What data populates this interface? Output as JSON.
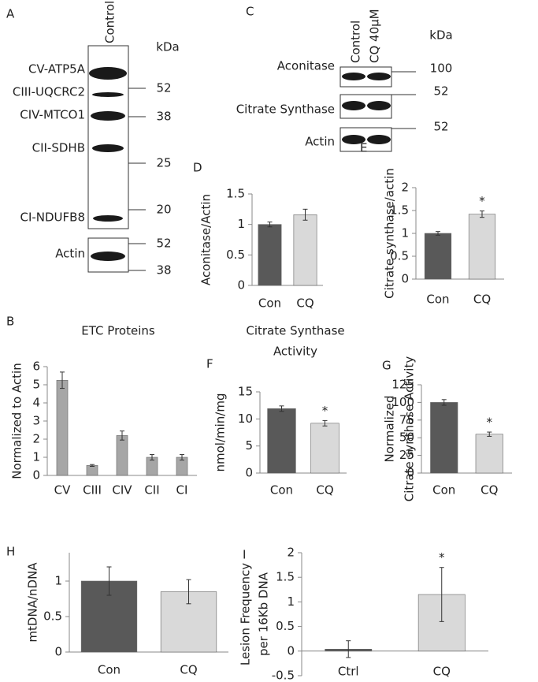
{
  "blots": [
    {
      "panel": "A",
      "lanes": [
        "Control"
      ],
      "rows": [
        "CV-ATP5A",
        "CIII-UQCRC2",
        "CIV-MTCO1",
        "CII-SDHB",
        "CI-NDUFB8",
        "Actin"
      ],
      "marker_title": "kDa",
      "markers": [
        52,
        38,
        25,
        20,
        52,
        38
      ]
    },
    {
      "panel": "C",
      "lanes": [
        "Control",
        "CQ 40μM"
      ],
      "rows": [
        "Aconitase",
        "Citrate Synthase",
        "Actin"
      ],
      "marker_title": "kDa",
      "markers": [
        100,
        52,
        52
      ]
    }
  ],
  "chart_data": [
    {
      "type": "bar",
      "panel": "B",
      "title": [
        "ETC Proteins"
      ],
      "ylabel": [
        "Normalized to Actin"
      ],
      "categories": [
        "CV",
        "CIII",
        "CIV",
        "CII",
        "CI"
      ],
      "values": [
        5.25,
        0.55,
        2.2,
        1.0,
        1.0
      ],
      "errors": [
        0.45,
        0.05,
        0.25,
        0.15,
        0.15
      ],
      "color": "#a6a6a6",
      "ylim": [
        0,
        6
      ],
      "yticks": [
        0,
        1,
        2,
        3,
        4,
        5,
        6
      ]
    },
    {
      "type": "bar",
      "panel": "D",
      "ylabel": [
        "Aconitase/Actin"
      ],
      "categories": [
        "Con",
        "CQ"
      ],
      "values": [
        1.0,
        1.16
      ],
      "errors": [
        0.04,
        0.09
      ],
      "colors": [
        "#595959",
        "#d9d9d9"
      ],
      "ylim": [
        0,
        1.5
      ],
      "yticks": [
        0,
        0.5,
        1,
        1.5
      ]
    },
    {
      "type": "bar",
      "panel": "E",
      "ylabel": [
        "Citrate synthase/actin"
      ],
      "categories": [
        "Con",
        "CQ"
      ],
      "values": [
        1.0,
        1.42
      ],
      "errors": [
        0.04,
        0.07
      ],
      "colors": [
        "#595959",
        "#d9d9d9"
      ],
      "ylim": [
        0,
        2
      ],
      "yticks": [
        0,
        0.5,
        1,
        1.5,
        2
      ],
      "annotations": [
        {
          "category": "CQ",
          "text": "*"
        }
      ]
    },
    {
      "type": "bar",
      "panel": "F",
      "title": [
        "Citrate Synthase",
        "Activity"
      ],
      "ylabel": [
        "nmol/min/mg"
      ],
      "categories": [
        "Con",
        "CQ"
      ],
      "values": [
        11.9,
        9.2
      ],
      "errors": [
        0.5,
        0.5
      ],
      "colors": [
        "#595959",
        "#d9d9d9"
      ],
      "ylim": [
        0,
        15
      ],
      "yticks": [
        0,
        5,
        10,
        15
      ],
      "annotations": [
        {
          "category": "CQ",
          "text": "*"
        }
      ]
    },
    {
      "type": "bar",
      "panel": "G",
      "ylabel": [
        "Normalized",
        "Citrate synthase Activity"
      ],
      "categories": [
        "Con",
        "CQ"
      ],
      "values": [
        100,
        55
      ],
      "errors": [
        4,
        3
      ],
      "colors": [
        "#595959",
        "#d9d9d9"
      ],
      "ylim": [
        0,
        125
      ],
      "yticks": [
        0,
        25,
        50,
        75,
        100,
        125
      ],
      "annotations": [
        {
          "category": "CQ",
          "text": "*"
        }
      ]
    },
    {
      "type": "bar",
      "panel": "H",
      "ylabel": [
        "mtDNA/nDNA"
      ],
      "categories": [
        "Con",
        "CQ"
      ],
      "values": [
        1.0,
        0.85
      ],
      "errors": [
        0.2,
        0.17
      ],
      "colors": [
        "#595959",
        "#d9d9d9"
      ],
      "ylim": [
        0,
        1.4
      ],
      "yticks": [
        0,
        0.5,
        1
      ]
    },
    {
      "type": "bar",
      "panel": "I",
      "ylabel": [
        "Lesion Frequency",
        "per 16Kb DNA"
      ],
      "categories": [
        "Ctrl",
        "CQ"
      ],
      "values": [
        0.04,
        1.15
      ],
      "errors": [
        0.17,
        0.55
      ],
      "colors": [
        "#595959",
        "#d9d9d9"
      ],
      "ylim": [
        -0.5,
        2
      ],
      "yticks": [
        -0.5,
        0,
        0.5,
        1,
        1.5,
        2
      ],
      "annotations": [
        {
          "category": "CQ",
          "text": "*"
        }
      ]
    }
  ]
}
